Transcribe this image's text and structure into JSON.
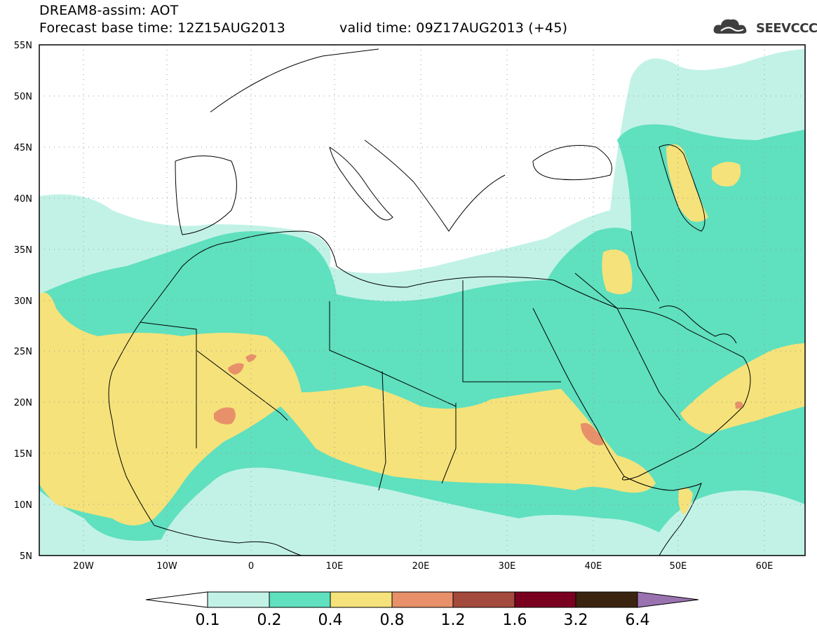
{
  "header": {
    "line1": "DREAM8-assim: AOT",
    "line2": "Forecast base time: 12Z15AUG2013",
    "line3": "valid time: 09Z17AUG2013 (+45)"
  },
  "logo": {
    "text": "SEEVCCC",
    "icon": "cloud-icon"
  },
  "map": {
    "lat_labels": [
      "55N",
      "50N",
      "45N",
      "40N",
      "35N",
      "30N",
      "25N",
      "20N",
      "15N",
      "10N",
      "5N"
    ],
    "lat_values": [
      55,
      50,
      45,
      40,
      35,
      30,
      25,
      20,
      15,
      10,
      5
    ],
    "lon_labels": [
      "20W",
      "10W",
      "0",
      "10E",
      "20E",
      "30E",
      "40E",
      "50E",
      "60E"
    ],
    "lon_values": [
      -20,
      -10,
      0,
      10,
      20,
      30,
      40,
      50,
      60
    ],
    "extent": {
      "lon_min": -25,
      "lon_max": 65,
      "lat_min": 5,
      "lat_max": 55
    },
    "grid": "dotted"
  },
  "colorbar": {
    "labels": [
      "0.1",
      "0.2",
      "0.4",
      "0.8",
      "1.2",
      "1.6",
      "3.2",
      "6.4"
    ],
    "colors": [
      "#ffffff",
      "#c2f2e6",
      "#5fe0bf",
      "#f5e27a",
      "#e8906a",
      "#a44a3c",
      "#7a0020",
      "#3a2410",
      "#9a72b0"
    ]
  },
  "colors": {
    "level_0_1": "#c2f2e6",
    "level_0_2": "#5fe0bf",
    "level_0_4": "#f5e27a",
    "level_0_8": "#e8906a",
    "border": "#000000"
  }
}
